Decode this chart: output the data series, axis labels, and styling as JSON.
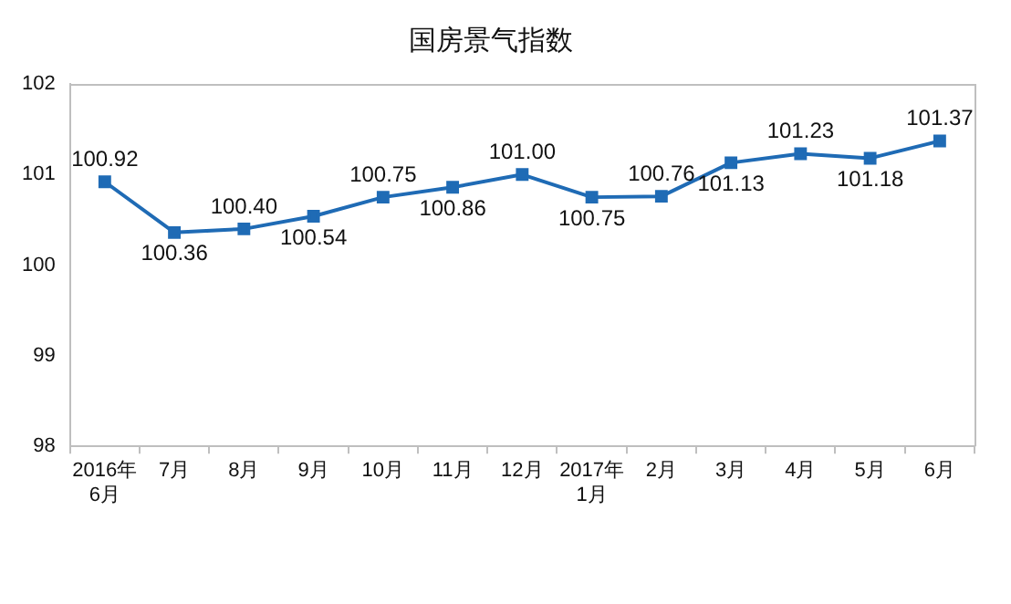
{
  "chart_data": {
    "type": "line",
    "title": "国房景气指数",
    "categories": [
      "2016年\n6月",
      "7月",
      "8月",
      "9月",
      "10月",
      "11月",
      "12月",
      "2017年\n1月",
      "2月",
      "3月",
      "4月",
      "5月",
      "6月"
    ],
    "series": [
      {
        "color": "#1f6bb5",
        "values": [
          100.92,
          100.36,
          100.4,
          100.54,
          100.75,
          100.86,
          101.0,
          100.75,
          100.76,
          101.13,
          101.23,
          101.18,
          101.37
        ],
        "value_labels": [
          "100.92",
          "100.36",
          "100.40",
          "100.54",
          "100.75",
          "100.86",
          "101.00",
          "100.75",
          "100.76",
          "101.13",
          "101.23",
          "101.18",
          "101.37"
        ]
      }
    ],
    "ylim": [
      98,
      102
    ],
    "yticks": [
      98,
      99,
      100,
      101,
      102
    ],
    "grid": false,
    "legend": false,
    "marker": "square",
    "line_style": "solid"
  }
}
